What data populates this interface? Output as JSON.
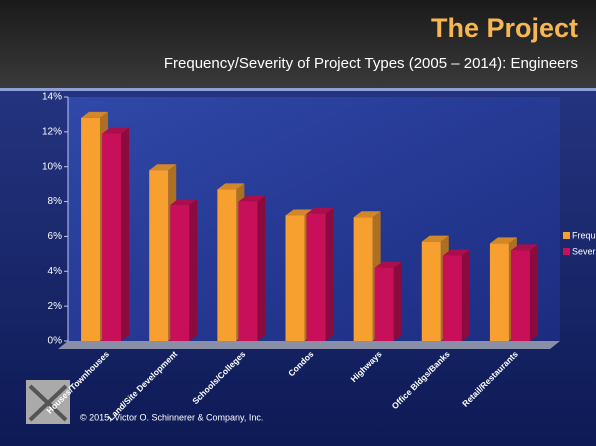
{
  "title": "The Project",
  "footer": "© 2015, Victor O. Schinnerer & Company, Inc.",
  "chart_data": {
    "type": "bar3d",
    "subtitle": "Frequency/Severity of Project Types (2005 – 2014): Engineers",
    "categories": [
      "Houses/Townhouses",
      "Land/Site Development",
      "Schools/Colleges",
      "Condos",
      "Highways",
      "Office Bldgs/Banks",
      "Retail/Restaurants"
    ],
    "series": [
      {
        "name": "Frequency",
        "color": "#f7a030",
        "values": [
          12.8,
          9.8,
          8.7,
          7.2,
          7.1,
          5.7,
          5.6
        ]
      },
      {
        "name": "Severity",
        "color": "#c8105a",
        "values": [
          11.9,
          7.8,
          8.0,
          7.3,
          4.2,
          4.9,
          5.2
        ]
      }
    ],
    "ylim": [
      0,
      14
    ],
    "yticks": [
      {
        "value": 0,
        "label": "0%"
      },
      {
        "value": 2,
        "label": "2%"
      },
      {
        "value": 4,
        "label": "4%"
      },
      {
        "value": 6,
        "label": "6%"
      },
      {
        "value": 8,
        "label": "8%"
      },
      {
        "value": 10,
        "label": "10%"
      },
      {
        "value": 12,
        "label": "12%"
      },
      {
        "value": 14,
        "label": "14%"
      }
    ],
    "legend": "right"
  }
}
